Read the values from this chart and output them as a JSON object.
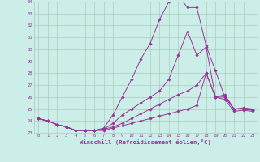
{
  "xlabel": "Windchill (Refroidissement éolien,°C)",
  "bg_color": "#cceee8",
  "grid_color": "#aaccbb",
  "line_color": "#993399",
  "x": [
    0,
    1,
    2,
    3,
    4,
    5,
    6,
    7,
    8,
    9,
    10,
    11,
    12,
    13,
    14,
    15,
    16,
    17,
    18,
    19,
    20,
    21,
    22,
    23
  ],
  "series": [
    [
      24.2,
      24.0,
      23.7,
      23.5,
      23.2,
      23.2,
      23.2,
      23.2,
      23.4,
      23.6,
      23.8,
      24.0,
      24.2,
      24.4,
      24.6,
      24.8,
      25.0,
      25.3,
      28.0,
      26.0,
      25.8,
      24.8,
      24.9,
      24.8
    ],
    [
      24.2,
      24.0,
      23.7,
      23.5,
      23.2,
      23.2,
      23.2,
      23.3,
      23.5,
      23.8,
      24.2,
      24.6,
      25.0,
      25.4,
      25.8,
      26.2,
      26.5,
      27.0,
      28.0,
      26.0,
      26.0,
      25.0,
      25.1,
      25.0
    ],
    [
      24.2,
      24.0,
      23.7,
      23.5,
      23.2,
      23.2,
      23.2,
      23.3,
      23.8,
      24.5,
      25.0,
      25.5,
      26.0,
      26.5,
      27.5,
      29.5,
      31.5,
      29.5,
      30.2,
      26.0,
      26.2,
      25.0,
      25.0,
      24.9
    ],
    [
      24.2,
      24.0,
      23.7,
      23.5,
      23.2,
      23.2,
      23.2,
      23.4,
      24.5,
      26.0,
      27.5,
      29.2,
      30.5,
      32.5,
      34.0,
      34.5,
      33.5,
      33.5,
      30.3,
      28.2,
      26.0,
      25.0,
      25.0,
      24.9
    ]
  ],
  "ylim": [
    23,
    34
  ],
  "yticks": [
    23,
    24,
    25,
    26,
    27,
    28,
    29,
    30,
    31,
    32,
    33,
    34
  ],
  "xticks": [
    0,
    1,
    2,
    3,
    4,
    5,
    6,
    7,
    8,
    9,
    10,
    11,
    12,
    13,
    14,
    15,
    16,
    17,
    18,
    19,
    20,
    21,
    22,
    23
  ]
}
